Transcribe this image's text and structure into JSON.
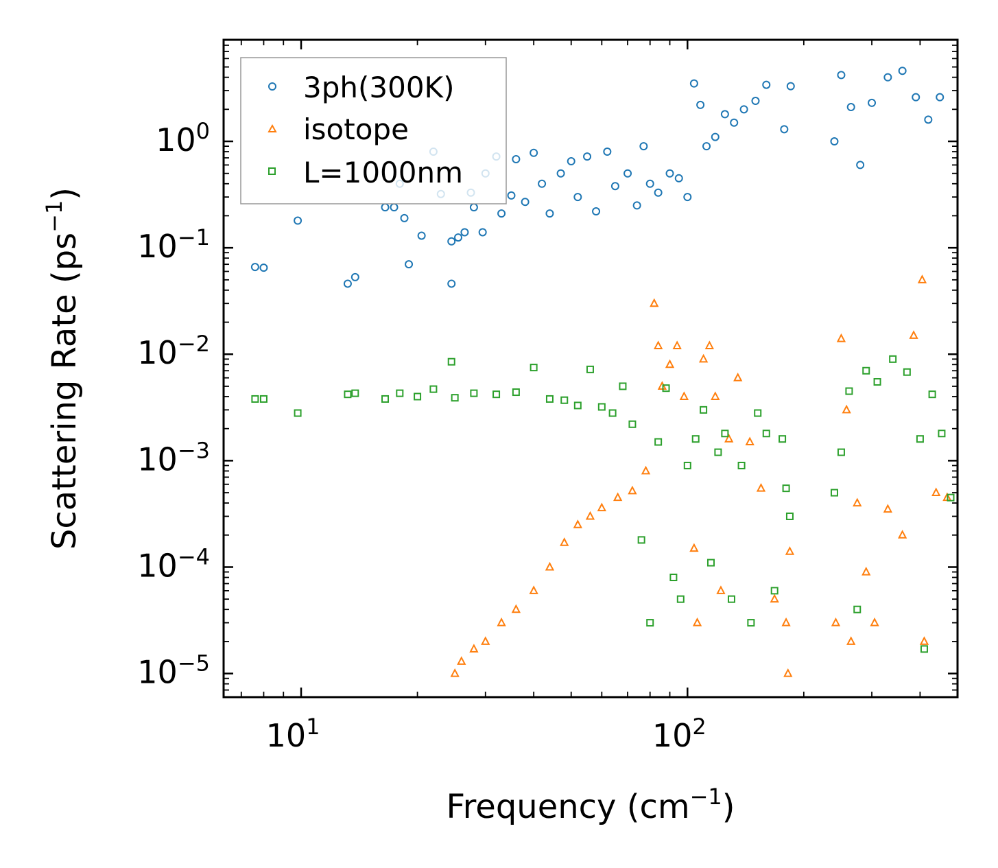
{
  "chart_data": {
    "type": "scatter",
    "title": "",
    "xlabel": {
      "base": "Frequency (cm",
      "sup": "−1",
      "tail": ")"
    },
    "ylabel": {
      "base": "Scattering Rate (ps",
      "sup": "−1",
      "tail": ")"
    },
    "xscale": "log",
    "yscale": "log",
    "xlim": [
      6.3,
      500
    ],
    "ylim": [
      6e-06,
      9
    ],
    "xticks": [
      {
        "value": 10,
        "base": "10",
        "exp": "1"
      },
      {
        "value": 100,
        "base": "10",
        "exp": "2"
      }
    ],
    "yticks": [
      {
        "value": 1,
        "base": "10",
        "exp": "0"
      },
      {
        "value": 0.1,
        "base": "10",
        "exp": "−1"
      },
      {
        "value": 0.01,
        "base": "10",
        "exp": "−2"
      },
      {
        "value": 0.001,
        "base": "10",
        "exp": "−3"
      },
      {
        "value": 0.0001,
        "base": "10",
        "exp": "−4"
      },
      {
        "value": 1e-05,
        "base": "10",
        "exp": "−5"
      }
    ],
    "legend_position": "top-left",
    "series": [
      {
        "name": "3ph(300K)",
        "color": "#1f77b4",
        "marker": "circle",
        "points": [
          [
            7.6,
            0.066
          ],
          [
            8.0,
            0.065
          ],
          [
            9.8,
            0.18
          ],
          [
            13.2,
            0.046
          ],
          [
            13.8,
            0.053
          ],
          [
            16.5,
            0.24
          ],
          [
            17.4,
            0.24
          ],
          [
            18,
            0.4
          ],
          [
            18.5,
            0.19
          ],
          [
            19,
            0.07
          ],
          [
            20.5,
            0.13
          ],
          [
            22,
            0.8
          ],
          [
            23,
            0.32
          ],
          [
            24.5,
            0.046
          ],
          [
            24.5,
            0.115
          ],
          [
            25.5,
            0.125
          ],
          [
            26.5,
            0.14
          ],
          [
            27.5,
            0.33
          ],
          [
            28,
            0.24
          ],
          [
            29.5,
            0.14
          ],
          [
            30,
            0.5
          ],
          [
            32,
            0.72
          ],
          [
            33,
            0.21
          ],
          [
            35,
            0.31
          ],
          [
            36,
            0.68
          ],
          [
            38,
            0.27
          ],
          [
            40,
            0.78
          ],
          [
            42,
            0.4
          ],
          [
            44,
            0.21
          ],
          [
            47,
            0.5
          ],
          [
            50,
            0.65
          ],
          [
            52,
            0.3
          ],
          [
            55,
            0.72
          ],
          [
            58,
            0.22
          ],
          [
            62,
            0.8
          ],
          [
            65,
            0.38
          ],
          [
            70,
            0.5
          ],
          [
            74,
            0.25
          ],
          [
            77,
            0.9
          ],
          [
            80,
            0.4
          ],
          [
            84,
            0.33
          ],
          [
            90,
            0.5
          ],
          [
            95,
            0.45
          ],
          [
            100,
            0.3
          ],
          [
            104,
            3.5
          ],
          [
            108,
            2.2
          ],
          [
            112,
            0.9
          ],
          [
            118,
            1.1
          ],
          [
            125,
            1.8
          ],
          [
            132,
            1.5
          ],
          [
            140,
            2.0
          ],
          [
            150,
            2.4
          ],
          [
            160,
            3.4
          ],
          [
            178,
            1.3
          ],
          [
            185,
            3.3
          ],
          [
            240,
            1.0
          ],
          [
            250,
            4.2
          ],
          [
            265,
            2.1
          ],
          [
            280,
            0.6
          ],
          [
            300,
            2.3
          ],
          [
            330,
            4.0
          ],
          [
            360,
            4.6
          ],
          [
            390,
            2.6
          ],
          [
            420,
            1.6
          ],
          [
            450,
            2.6
          ]
        ]
      },
      {
        "name": "isotope",
        "color": "#ff7f0e",
        "marker": "triangle",
        "points": [
          [
            25,
            1e-05
          ],
          [
            26,
            1.3e-05
          ],
          [
            28,
            1.7e-05
          ],
          [
            30,
            2e-05
          ],
          [
            33,
            3e-05
          ],
          [
            36,
            4e-05
          ],
          [
            40,
            6e-05
          ],
          [
            44,
            0.0001
          ],
          [
            48,
            0.00017
          ],
          [
            52,
            0.00025
          ],
          [
            56,
            0.0003
          ],
          [
            60,
            0.00036
          ],
          [
            66,
            0.00045
          ],
          [
            72,
            0.00052
          ],
          [
            78,
            0.0008
          ],
          [
            82,
            0.03
          ],
          [
            84,
            0.012
          ],
          [
            86,
            0.005
          ],
          [
            90,
            0.008
          ],
          [
            94,
            0.012
          ],
          [
            98,
            0.004
          ],
          [
            104,
            0.00015
          ],
          [
            106,
            3e-05
          ],
          [
            110,
            0.009
          ],
          [
            114,
            0.012
          ],
          [
            118,
            0.004
          ],
          [
            122,
            6e-05
          ],
          [
            128,
            0.0016
          ],
          [
            135,
            0.006
          ],
          [
            145,
            0.0015
          ],
          [
            155,
            0.00055
          ],
          [
            168,
            5e-05
          ],
          [
            180,
            3e-05
          ],
          [
            182,
            1e-05
          ],
          [
            184,
            0.00014
          ],
          [
            242,
            3e-05
          ],
          [
            250,
            0.014
          ],
          [
            258,
            0.003
          ],
          [
            265,
            2e-05
          ],
          [
            275,
            0.0004
          ],
          [
            290,
            9e-05
          ],
          [
            305,
            3e-05
          ],
          [
            330,
            0.00035
          ],
          [
            360,
            0.0002
          ],
          [
            385,
            0.015
          ],
          [
            405,
            0.05
          ],
          [
            410,
            2e-05
          ],
          [
            440,
            0.0005
          ],
          [
            470,
            0.00045
          ]
        ]
      },
      {
        "name": "L=1000nm",
        "color": "#2ca02c",
        "marker": "square",
        "points": [
          [
            7.6,
            0.0038
          ],
          [
            8.0,
            0.0038
          ],
          [
            9.8,
            0.0028
          ],
          [
            13.2,
            0.0042
          ],
          [
            13.8,
            0.0043
          ],
          [
            16.5,
            0.0038
          ],
          [
            18,
            0.0043
          ],
          [
            20,
            0.004
          ],
          [
            22,
            0.0047
          ],
          [
            24.5,
            0.0085
          ],
          [
            25,
            0.0039
          ],
          [
            28,
            0.0043
          ],
          [
            32,
            0.0042
          ],
          [
            36,
            0.0044
          ],
          [
            40,
            0.0075
          ],
          [
            44,
            0.0038
          ],
          [
            48,
            0.0037
          ],
          [
            52,
            0.0033
          ],
          [
            56,
            0.0072
          ],
          [
            60,
            0.0032
          ],
          [
            64,
            0.0028
          ],
          [
            68,
            0.005
          ],
          [
            72,
            0.0022
          ],
          [
            76,
            0.00018
          ],
          [
            80,
            3e-05
          ],
          [
            84,
            0.0015
          ],
          [
            88,
            0.0048
          ],
          [
            92,
            8e-05
          ],
          [
            96,
            5e-05
          ],
          [
            100,
            0.0009
          ],
          [
            105,
            0.0016
          ],
          [
            110,
            0.003
          ],
          [
            115,
            0.00011
          ],
          [
            120,
            0.0012
          ],
          [
            125,
            0.0018
          ],
          [
            130,
            5e-05
          ],
          [
            138,
            0.0009
          ],
          [
            146,
            3e-05
          ],
          [
            152,
            0.0028
          ],
          [
            160,
            0.0018
          ],
          [
            168,
            6e-05
          ],
          [
            176,
            0.0016
          ],
          [
            180,
            0.00055
          ],
          [
            184,
            0.0003
          ],
          [
            240,
            0.0005
          ],
          [
            250,
            0.0012
          ],
          [
            262,
            0.0045
          ],
          [
            275,
            4e-05
          ],
          [
            290,
            0.007
          ],
          [
            310,
            0.0055
          ],
          [
            340,
            0.009
          ],
          [
            370,
            0.0068
          ],
          [
            400,
            0.0016
          ],
          [
            410,
            1.7e-05
          ],
          [
            430,
            0.0042
          ],
          [
            455,
            0.0018
          ],
          [
            480,
            0.00045
          ]
        ]
      }
    ]
  }
}
